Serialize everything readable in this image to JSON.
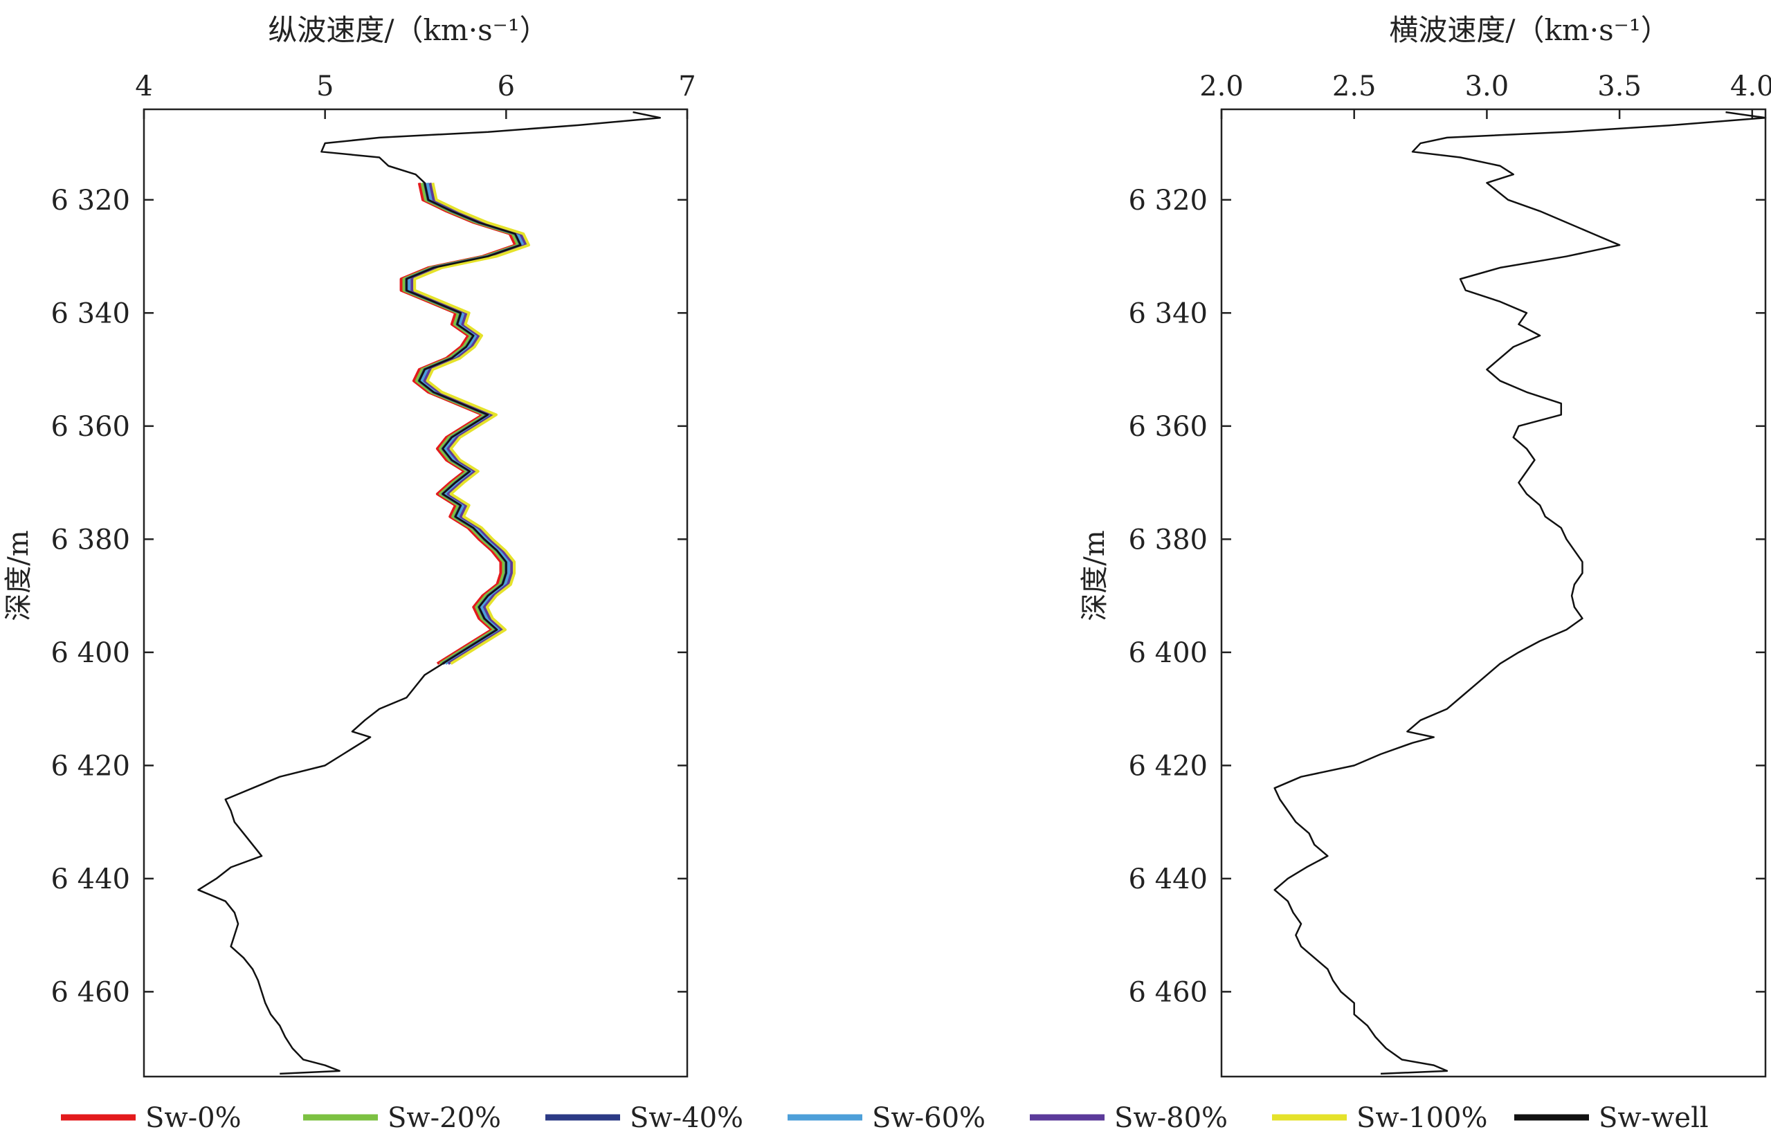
{
  "chart_data": [
    {
      "type": "line",
      "xlabel": "纵波速度/（km·s⁻¹）",
      "ylabel": "深度/m",
      "xlim": [
        4,
        7
      ],
      "ylim": [
        6475,
        6304
      ],
      "x_axis_position": "top",
      "y_axis_reversed": true,
      "grid": false,
      "xticks": [
        4,
        5,
        6,
        7
      ],
      "xtick_labels": [
        "4",
        "5",
        "6",
        "7"
      ],
      "yticks": [
        6320,
        6340,
        6360,
        6380,
        6400,
        6420,
        6440,
        6460
      ],
      "ytick_labels": [
        "6 320",
        "6 340",
        "6 360",
        "6 380",
        "6 400",
        "6 420",
        "6 440",
        "6 460"
      ],
      "well_log": {
        "name": "Sw-well",
        "depth": [
          6304.5,
          6305.5,
          6306.8,
          6308,
          6309,
          6310,
          6311.5,
          6312.5,
          6314,
          6315.5,
          6317,
          6320,
          6322,
          6324,
          6326,
          6328,
          6330,
          6332,
          6334,
          6336,
          6338,
          6340,
          6342,
          6344,
          6346,
          6348,
          6350,
          6352,
          6354,
          6356,
          6358,
          6360,
          6362,
          6364,
          6366,
          6368,
          6370,
          6372,
          6374,
          6376,
          6378,
          6380,
          6382,
          6384,
          6386,
          6388,
          6390,
          6392,
          6394,
          6396,
          6398,
          6400,
          6402,
          6404,
          6406,
          6408,
          6410,
          6412,
          6414,
          6415,
          6416,
          6418,
          6420,
          6422,
          6424,
          6426,
          6428,
          6430,
          6432,
          6434,
          6436,
          6438,
          6440,
          6442,
          6444,
          6446,
          6448,
          6450,
          6452,
          6454,
          6456,
          6458,
          6460,
          6462,
          6464,
          6466,
          6468,
          6470,
          6472,
          6473,
          6474,
          6474.5
        ],
        "vp": [
          6.7,
          6.85,
          6.4,
          5.9,
          5.3,
          5.0,
          4.98,
          5.3,
          5.35,
          5.5,
          5.55,
          5.57,
          5.7,
          5.85,
          6.05,
          6.08,
          5.9,
          5.6,
          5.45,
          5.45,
          5.6,
          5.75,
          5.73,
          5.82,
          5.78,
          5.7,
          5.55,
          5.52,
          5.6,
          5.75,
          5.9,
          5.8,
          5.7,
          5.65,
          5.7,
          5.8,
          5.72,
          5.65,
          5.75,
          5.72,
          5.82,
          5.88,
          5.95,
          6.0,
          6.0,
          5.98,
          5.9,
          5.85,
          5.88,
          5.95,
          5.85,
          5.75,
          5.65,
          5.55,
          5.5,
          5.45,
          5.3,
          5.22,
          5.15,
          5.25,
          5.2,
          5.1,
          5.0,
          4.75,
          4.6,
          4.45,
          4.48,
          4.5,
          4.55,
          4.6,
          4.65,
          4.48,
          4.4,
          4.3,
          4.45,
          4.5,
          4.52,
          4.5,
          4.48,
          4.55,
          4.6,
          4.63,
          4.65,
          4.67,
          4.7,
          4.75,
          4.78,
          4.82,
          4.88,
          5.0,
          5.08,
          4.75
        ]
      },
      "series": [
        {
          "name": "Sw-0%",
          "color": "#e31a1c",
          "offset": -0.03
        },
        {
          "name": "Sw-20%",
          "color": "#7cc142",
          "offset": -0.015
        },
        {
          "name": "Sw-40%",
          "color": "#2b3a85",
          "offset": 0.0
        },
        {
          "name": "Sw-60%",
          "color": "#4d9fd9",
          "offset": 0.015
        },
        {
          "name": "Sw-80%",
          "color": "#5b3a9a",
          "offset": 0.03
        },
        {
          "name": "Sw-100%",
          "color": "#e5e22a",
          "offset": 0.045
        }
      ],
      "fluid_depth_range": [
        6316,
        6402
      ]
    },
    {
      "type": "line",
      "xlabel": "横波速度/（km·s⁻¹）",
      "ylabel": "深度/m",
      "xlim": [
        2.0,
        4.05
      ],
      "ylim": [
        6475,
        6304
      ],
      "x_axis_position": "top",
      "y_axis_reversed": true,
      "grid": false,
      "xticks": [
        2.0,
        2.5,
        3.0,
        3.5,
        4.0
      ],
      "xtick_labels": [
        "2.0",
        "2.5",
        "3.0",
        "3.5",
        "4.0"
      ],
      "yticks": [
        6320,
        6340,
        6360,
        6380,
        6400,
        6420,
        6440,
        6460
      ],
      "ytick_labels": [
        "6 320",
        "6 340",
        "6 360",
        "6 380",
        "6 400",
        "6 420",
        "6 440",
        "6 460"
      ],
      "well_log": {
        "name": "Sw-well",
        "depth": [
          6304.5,
          6305.5,
          6306.8,
          6308,
          6309,
          6310,
          6311.5,
          6312.5,
          6314,
          6315.5,
          6317,
          6320,
          6322,
          6324,
          6326,
          6328,
          6330,
          6332,
          6334,
          6336,
          6338,
          6340,
          6342,
          6344,
          6346,
          6348,
          6350,
          6352,
          6354,
          6356,
          6358,
          6360,
          6362,
          6364,
          6366,
          6368,
          6370,
          6372,
          6374,
          6376,
          6378,
          6380,
          6382,
          6384,
          6386,
          6388,
          6390,
          6392,
          6394,
          6396,
          6398,
          6400,
          6402,
          6404,
          6406,
          6408,
          6410,
          6412,
          6414,
          6415,
          6416,
          6418,
          6420,
          6422,
          6424,
          6426,
          6428,
          6430,
          6432,
          6434,
          6436,
          6438,
          6440,
          6442,
          6444,
          6446,
          6448,
          6450,
          6452,
          6454,
          6456,
          6458,
          6460,
          6462,
          6464,
          6466,
          6468,
          6470,
          6472,
          6473,
          6474,
          6474.5
        ],
        "vs": [
          3.9,
          4.05,
          3.7,
          3.3,
          2.85,
          2.75,
          2.72,
          2.9,
          3.05,
          3.1,
          3.0,
          3.08,
          3.2,
          3.3,
          3.4,
          3.5,
          3.3,
          3.05,
          2.9,
          2.92,
          3.05,
          3.15,
          3.12,
          3.2,
          3.1,
          3.05,
          3.0,
          3.05,
          3.15,
          3.28,
          3.28,
          3.12,
          3.1,
          3.15,
          3.18,
          3.15,
          3.12,
          3.15,
          3.2,
          3.22,
          3.28,
          3.3,
          3.33,
          3.36,
          3.36,
          3.33,
          3.32,
          3.33,
          3.36,
          3.3,
          3.2,
          3.12,
          3.05,
          3.0,
          2.95,
          2.9,
          2.85,
          2.75,
          2.7,
          2.8,
          2.72,
          2.6,
          2.5,
          2.3,
          2.2,
          2.22,
          2.25,
          2.28,
          2.33,
          2.35,
          2.4,
          2.32,
          2.25,
          2.2,
          2.25,
          2.27,
          2.3,
          2.28,
          2.3,
          2.35,
          2.4,
          2.42,
          2.45,
          2.5,
          2.5,
          2.55,
          2.58,
          2.62,
          2.68,
          2.8,
          2.85,
          2.6
        ]
      }
    }
  ]
}
